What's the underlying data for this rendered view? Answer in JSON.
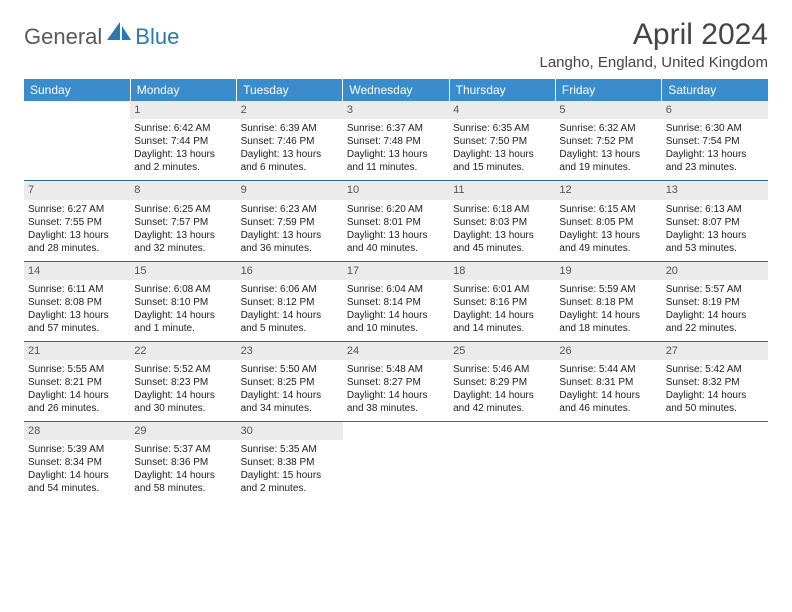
{
  "logo": {
    "general": "General",
    "blue": "Blue"
  },
  "title": "April 2024",
  "location": "Langho, England, United Kingdom",
  "day_headers": [
    "Sunday",
    "Monday",
    "Tuesday",
    "Wednesday",
    "Thursday",
    "Friday",
    "Saturday"
  ],
  "colors": {
    "header_bg": "#3b8ccc",
    "header_text": "#ffffff",
    "daynum_bg": "#ebebeb",
    "row_border": "#2a6da3"
  },
  "weeks": [
    [
      {
        "n": "",
        "empty": true,
        "sunrise": "",
        "sunset": "",
        "daylight1": "",
        "daylight2": ""
      },
      {
        "n": "1",
        "sunrise": "Sunrise: 6:42 AM",
        "sunset": "Sunset: 7:44 PM",
        "daylight1": "Daylight: 13 hours",
        "daylight2": "and 2 minutes."
      },
      {
        "n": "2",
        "sunrise": "Sunrise: 6:39 AM",
        "sunset": "Sunset: 7:46 PM",
        "daylight1": "Daylight: 13 hours",
        "daylight2": "and 6 minutes."
      },
      {
        "n": "3",
        "sunrise": "Sunrise: 6:37 AM",
        "sunset": "Sunset: 7:48 PM",
        "daylight1": "Daylight: 13 hours",
        "daylight2": "and 11 minutes."
      },
      {
        "n": "4",
        "sunrise": "Sunrise: 6:35 AM",
        "sunset": "Sunset: 7:50 PM",
        "daylight1": "Daylight: 13 hours",
        "daylight2": "and 15 minutes."
      },
      {
        "n": "5",
        "sunrise": "Sunrise: 6:32 AM",
        "sunset": "Sunset: 7:52 PM",
        "daylight1": "Daylight: 13 hours",
        "daylight2": "and 19 minutes."
      },
      {
        "n": "6",
        "sunrise": "Sunrise: 6:30 AM",
        "sunset": "Sunset: 7:54 PM",
        "daylight1": "Daylight: 13 hours",
        "daylight2": "and 23 minutes."
      }
    ],
    [
      {
        "n": "7",
        "sunrise": "Sunrise: 6:27 AM",
        "sunset": "Sunset: 7:55 PM",
        "daylight1": "Daylight: 13 hours",
        "daylight2": "and 28 minutes."
      },
      {
        "n": "8",
        "sunrise": "Sunrise: 6:25 AM",
        "sunset": "Sunset: 7:57 PM",
        "daylight1": "Daylight: 13 hours",
        "daylight2": "and 32 minutes."
      },
      {
        "n": "9",
        "sunrise": "Sunrise: 6:23 AM",
        "sunset": "Sunset: 7:59 PM",
        "daylight1": "Daylight: 13 hours",
        "daylight2": "and 36 minutes."
      },
      {
        "n": "10",
        "sunrise": "Sunrise: 6:20 AM",
        "sunset": "Sunset: 8:01 PM",
        "daylight1": "Daylight: 13 hours",
        "daylight2": "and 40 minutes."
      },
      {
        "n": "11",
        "sunrise": "Sunrise: 6:18 AM",
        "sunset": "Sunset: 8:03 PM",
        "daylight1": "Daylight: 13 hours",
        "daylight2": "and 45 minutes."
      },
      {
        "n": "12",
        "sunrise": "Sunrise: 6:15 AM",
        "sunset": "Sunset: 8:05 PM",
        "daylight1": "Daylight: 13 hours",
        "daylight2": "and 49 minutes."
      },
      {
        "n": "13",
        "sunrise": "Sunrise: 6:13 AM",
        "sunset": "Sunset: 8:07 PM",
        "daylight1": "Daylight: 13 hours",
        "daylight2": "and 53 minutes."
      }
    ],
    [
      {
        "n": "14",
        "sunrise": "Sunrise: 6:11 AM",
        "sunset": "Sunset: 8:08 PM",
        "daylight1": "Daylight: 13 hours",
        "daylight2": "and 57 minutes."
      },
      {
        "n": "15",
        "sunrise": "Sunrise: 6:08 AM",
        "sunset": "Sunset: 8:10 PM",
        "daylight1": "Daylight: 14 hours",
        "daylight2": "and 1 minute."
      },
      {
        "n": "16",
        "sunrise": "Sunrise: 6:06 AM",
        "sunset": "Sunset: 8:12 PM",
        "daylight1": "Daylight: 14 hours",
        "daylight2": "and 5 minutes."
      },
      {
        "n": "17",
        "sunrise": "Sunrise: 6:04 AM",
        "sunset": "Sunset: 8:14 PM",
        "daylight1": "Daylight: 14 hours",
        "daylight2": "and 10 minutes."
      },
      {
        "n": "18",
        "sunrise": "Sunrise: 6:01 AM",
        "sunset": "Sunset: 8:16 PM",
        "daylight1": "Daylight: 14 hours",
        "daylight2": "and 14 minutes."
      },
      {
        "n": "19",
        "sunrise": "Sunrise: 5:59 AM",
        "sunset": "Sunset: 8:18 PM",
        "daylight1": "Daylight: 14 hours",
        "daylight2": "and 18 minutes."
      },
      {
        "n": "20",
        "sunrise": "Sunrise: 5:57 AM",
        "sunset": "Sunset: 8:19 PM",
        "daylight1": "Daylight: 14 hours",
        "daylight2": "and 22 minutes."
      }
    ],
    [
      {
        "n": "21",
        "sunrise": "Sunrise: 5:55 AM",
        "sunset": "Sunset: 8:21 PM",
        "daylight1": "Daylight: 14 hours",
        "daylight2": "and 26 minutes."
      },
      {
        "n": "22",
        "sunrise": "Sunrise: 5:52 AM",
        "sunset": "Sunset: 8:23 PM",
        "daylight1": "Daylight: 14 hours",
        "daylight2": "and 30 minutes."
      },
      {
        "n": "23",
        "sunrise": "Sunrise: 5:50 AM",
        "sunset": "Sunset: 8:25 PM",
        "daylight1": "Daylight: 14 hours",
        "daylight2": "and 34 minutes."
      },
      {
        "n": "24",
        "sunrise": "Sunrise: 5:48 AM",
        "sunset": "Sunset: 8:27 PM",
        "daylight1": "Daylight: 14 hours",
        "daylight2": "and 38 minutes."
      },
      {
        "n": "25",
        "sunrise": "Sunrise: 5:46 AM",
        "sunset": "Sunset: 8:29 PM",
        "daylight1": "Daylight: 14 hours",
        "daylight2": "and 42 minutes."
      },
      {
        "n": "26",
        "sunrise": "Sunrise: 5:44 AM",
        "sunset": "Sunset: 8:31 PM",
        "daylight1": "Daylight: 14 hours",
        "daylight2": "and 46 minutes."
      },
      {
        "n": "27",
        "sunrise": "Sunrise: 5:42 AM",
        "sunset": "Sunset: 8:32 PM",
        "daylight1": "Daylight: 14 hours",
        "daylight2": "and 50 minutes."
      }
    ],
    [
      {
        "n": "28",
        "sunrise": "Sunrise: 5:39 AM",
        "sunset": "Sunset: 8:34 PM",
        "daylight1": "Daylight: 14 hours",
        "daylight2": "and 54 minutes."
      },
      {
        "n": "29",
        "sunrise": "Sunrise: 5:37 AM",
        "sunset": "Sunset: 8:36 PM",
        "daylight1": "Daylight: 14 hours",
        "daylight2": "and 58 minutes."
      },
      {
        "n": "30",
        "sunrise": "Sunrise: 5:35 AM",
        "sunset": "Sunset: 8:38 PM",
        "daylight1": "Daylight: 15 hours",
        "daylight2": "and 2 minutes."
      },
      {
        "n": "",
        "empty": true,
        "sunrise": "",
        "sunset": "",
        "daylight1": "",
        "daylight2": ""
      },
      {
        "n": "",
        "empty": true,
        "sunrise": "",
        "sunset": "",
        "daylight1": "",
        "daylight2": ""
      },
      {
        "n": "",
        "empty": true,
        "sunrise": "",
        "sunset": "",
        "daylight1": "",
        "daylight2": ""
      },
      {
        "n": "",
        "empty": true,
        "sunrise": "",
        "sunset": "",
        "daylight1": "",
        "daylight2": ""
      }
    ]
  ]
}
